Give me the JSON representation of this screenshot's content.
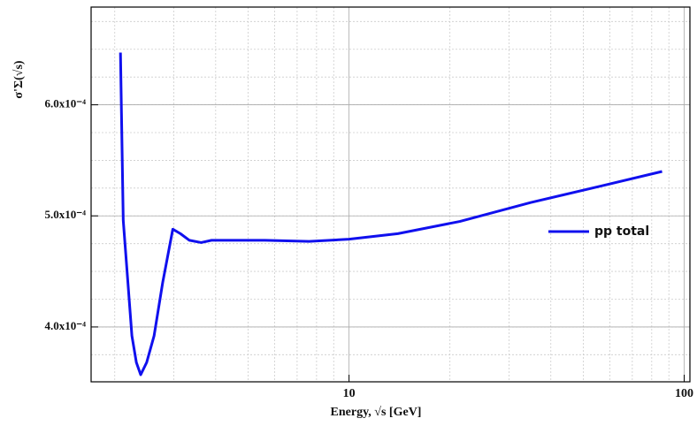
{
  "chart_data": {
    "type": "line",
    "x_label": "Energy, √s [GeV]",
    "y_label": "σ'Σ(√s)",
    "x_log": true,
    "grid": true,
    "legend": "right",
    "xlim": [
      1.7,
      104
    ],
    "ylim": [
      0.0003506,
      0.000688
    ],
    "xticks": [
      10,
      100
    ],
    "yticks": [
      {
        "value": 0.0004,
        "label": "4.0x10⁻⁴"
      },
      {
        "value": 0.0005,
        "label": "5.0x10⁻⁴"
      },
      {
        "value": 0.0006,
        "label": "6.0x10⁻⁴"
      }
    ],
    "x": [
      2.08,
      2.12,
      2.25,
      2.32,
      2.39,
      2.49,
      2.62,
      2.78,
      2.98,
      3.14,
      3.34,
      3.62,
      3.89,
      5.61,
      7.6,
      10,
      13.98,
      21.4,
      34.8,
      56.7,
      85.9
    ],
    "series": [
      {
        "name": "pp total",
        "color": "#1010ee",
        "values": [
          0.000647,
          0.000496,
          0.000392,
          0.000368,
          0.000357,
          0.000368,
          0.000392,
          0.00044,
          0.000488,
          0.000484,
          0.000478,
          0.000476,
          0.000478,
          0.000478,
          0.000477,
          0.000479,
          0.000484,
          0.000495,
          0.000512,
          0.000527,
          0.00054
        ]
      }
    ]
  }
}
